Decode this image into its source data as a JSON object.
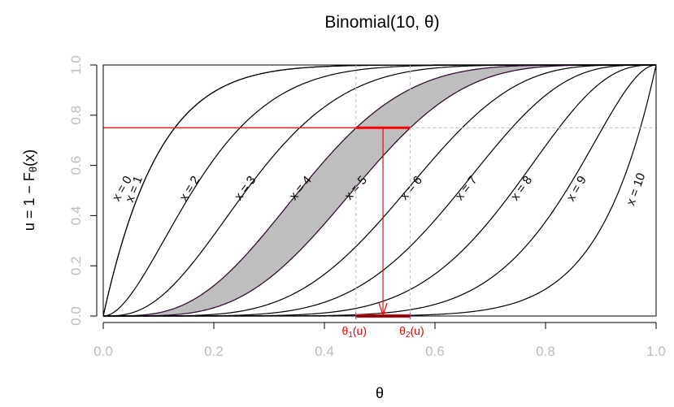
{
  "chart_data": {
    "type": "line",
    "title": "Binomial(10, θ)",
    "xlabel": "θ",
    "ylabel": "u = 1 − Fθ(x)",
    "ylabel_parts": {
      "pre": "u = 1 − F",
      "sub": "θ",
      "post": "(x)"
    },
    "n": 10,
    "xlim": [
      0,
      1
    ],
    "ylim": [
      0,
      1
    ],
    "xticks": [
      "0.0",
      "0.2",
      "0.4",
      "0.6",
      "0.8",
      "1.0"
    ],
    "yticks": [
      "0.0",
      "0.2",
      "0.4",
      "0.6",
      "0.8",
      "1.0"
    ],
    "series": [
      {
        "name": "x = 0",
        "x": 0
      },
      {
        "name": "x = 1",
        "x": 1
      },
      {
        "name": "x = 2",
        "x": 2
      },
      {
        "name": "x = 3",
        "x": 3
      },
      {
        "name": "x = 4",
        "x": 4
      },
      {
        "name": "x = 5",
        "x": 5
      },
      {
        "name": "x = 6",
        "x": 6
      },
      {
        "name": "x = 7",
        "x": 7
      },
      {
        "name": "x = 8",
        "x": 8
      },
      {
        "name": "x = 9",
        "x": 9
      },
      {
        "name": "x = 10",
        "x": 10
      }
    ],
    "shaded_band": {
      "between": [
        4,
        5
      ],
      "color": "#bebebe",
      "edge_color": "#8b008b"
    },
    "annotation": {
      "u": 0.75,
      "theta1": 0.457,
      "theta2": 0.555,
      "theta_mid": 0.506,
      "theta1_label": {
        "pre": "θ",
        "sub": "1",
        "post": "(u)"
      },
      "theta2_label": {
        "pre": "θ",
        "sub": "2",
        "post": "(u)"
      },
      "color": "#ff0000",
      "interval_end_color": "#cc55cc"
    },
    "grid": false
  }
}
